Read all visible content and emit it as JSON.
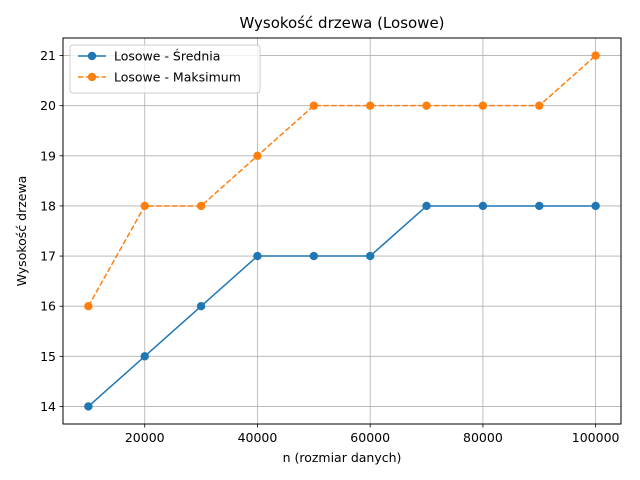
{
  "chart_data": {
    "type": "line",
    "title": "Wysokość drzewa (Losowe)",
    "xlabel": "n (rozmiar danych)",
    "ylabel": "Wysokość drzewa",
    "x": [
      10000,
      20000,
      30000,
      40000,
      50000,
      60000,
      70000,
      80000,
      90000,
      100000
    ],
    "xticks": [
      20000,
      40000,
      60000,
      80000,
      100000
    ],
    "yticks": [
      14,
      15,
      16,
      17,
      18,
      19,
      20,
      21
    ],
    "xlim": [
      5500,
      104500
    ],
    "ylim": [
      13.65,
      21.35
    ],
    "grid": true,
    "legend_position": "top-left",
    "series": [
      {
        "name": "Losowe - Średnia",
        "values": [
          14,
          15,
          16,
          17,
          17,
          17,
          18,
          18,
          18,
          18
        ],
        "color": "#1f77b4",
        "linestyle": "solid",
        "marker": "circle"
      },
      {
        "name": "Losowe - Maksimum",
        "values": [
          16,
          18,
          18,
          19,
          20,
          20,
          20,
          20,
          20,
          21
        ],
        "color": "#ff7f0e",
        "linestyle": "dashed",
        "marker": "circle"
      }
    ]
  }
}
